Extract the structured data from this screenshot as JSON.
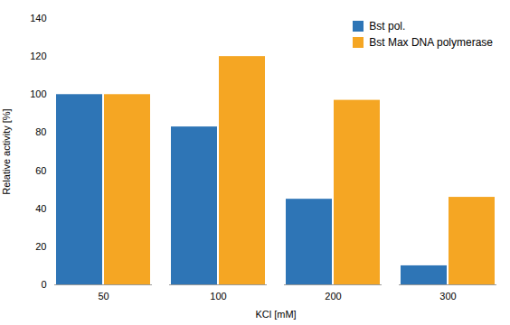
{
  "chart_data": {
    "type": "bar",
    "categories": [
      "50",
      "100",
      "200",
      "300"
    ],
    "series": [
      {
        "name": "Bst pol.",
        "color": "#2E75B6",
        "values": [
          100,
          83,
          45,
          10
        ]
      },
      {
        "name": "Bst Max DNA polymerase",
        "color": "#F5A623",
        "values": [
          100,
          120,
          97,
          46
        ]
      }
    ],
    "xlabel": "KCl [mM]",
    "ylabel": "Relative activity [%]",
    "ylim": [
      0,
      140
    ],
    "yticks": [
      0,
      20,
      40,
      60,
      80,
      100,
      120,
      140
    ],
    "grid": false,
    "legend": "upper right"
  }
}
